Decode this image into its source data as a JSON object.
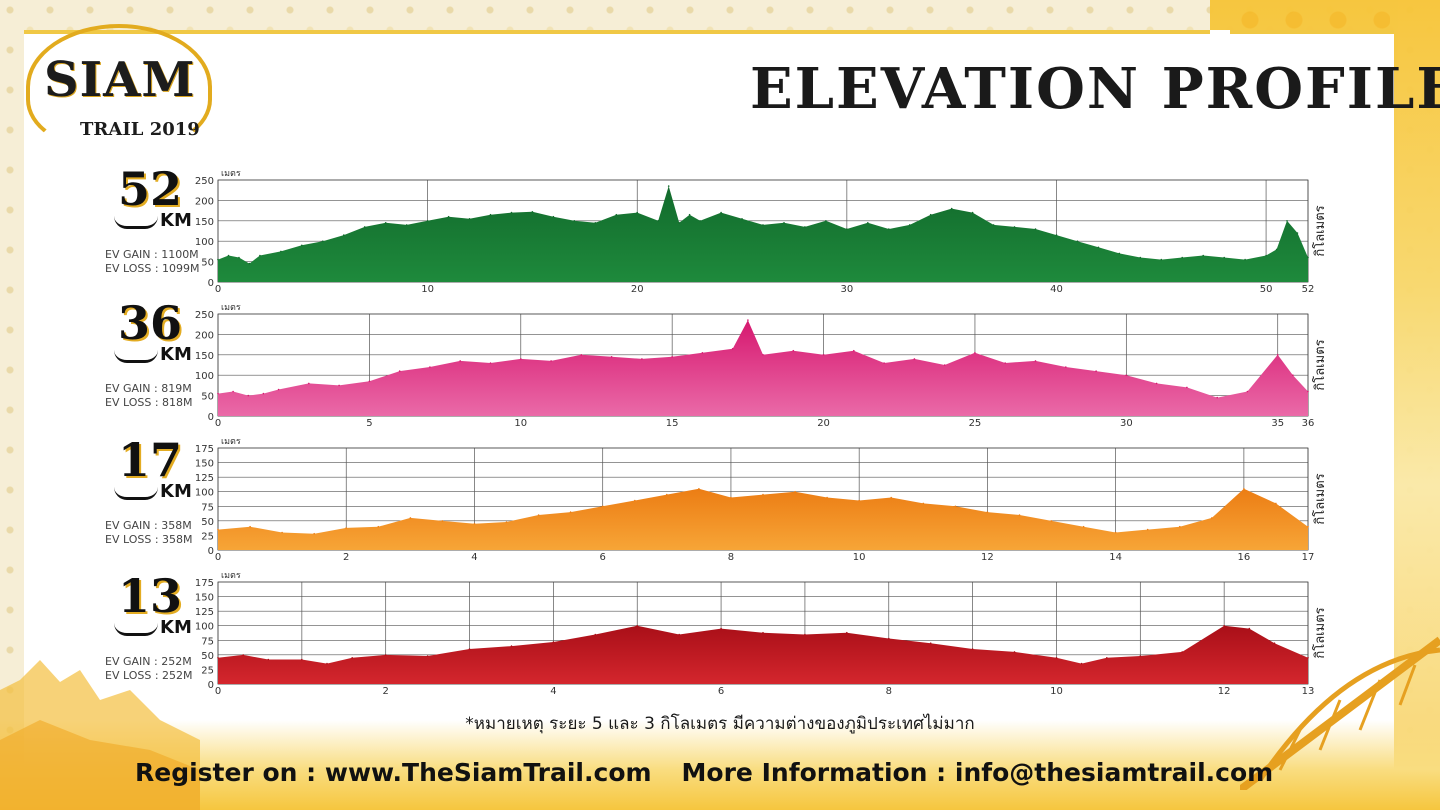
{
  "header": {
    "title": "ELEVATION PROFILES",
    "logo_word": "SIAM",
    "logo_sub": "TRAIL",
    "logo_year": "2019"
  },
  "footnote": "*หมายเหตุ ระยะ 5 และ 3 กิโลเมตร มีความต่างของภูมิประเทศไม่มาก",
  "footer": {
    "register": "Register on : www.TheSiamTrail.com",
    "info": "More Information : info@thesiamtrail.com"
  },
  "colors": {
    "green": "#138036",
    "pink": "#e43b8e",
    "orange": "#f1921d",
    "red": "#c1141d",
    "gold": "#e2ab1e"
  },
  "chart_data": [
    {
      "type": "area",
      "race": "52",
      "km_label": "KM",
      "gain": "EV GAIN : 1100M",
      "loss": "EV LOSS : 1099M",
      "ylabel": "เมตร",
      "xlabel_right": "กิโลเมตร",
      "color": "#1e8a3c",
      "color2": "#126a2c",
      "ylim": [
        0,
        250
      ],
      "yticks": [
        0,
        50,
        100,
        150,
        200,
        250
      ],
      "xlim": [
        0,
        52
      ],
      "xticks": [
        0,
        10,
        20,
        30,
        40,
        50,
        52
      ],
      "gridx": [
        0,
        10,
        20,
        30,
        40,
        50,
        52
      ],
      "x": [
        0,
        0.5,
        1,
        1.5,
        2,
        3,
        4,
        5,
        6,
        7,
        8,
        9,
        10,
        11,
        12,
        13,
        14,
        15,
        16,
        17,
        18,
        19,
        20,
        21,
        21.5,
        22,
        22.5,
        23,
        24,
        25,
        26,
        27,
        28,
        29,
        30,
        31,
        32,
        33,
        34,
        35,
        36,
        37,
        38,
        39,
        40,
        41,
        42,
        43,
        44,
        45,
        46,
        47,
        48,
        49,
        50,
        50.5,
        51,
        51.5,
        52
      ],
      "values": [
        55,
        65,
        60,
        45,
        65,
        75,
        90,
        100,
        115,
        135,
        145,
        140,
        150,
        160,
        155,
        165,
        170,
        172,
        160,
        150,
        145,
        165,
        170,
        150,
        235,
        145,
        165,
        150,
        170,
        155,
        140,
        145,
        135,
        150,
        130,
        145,
        130,
        140,
        165,
        180,
        170,
        140,
        135,
        130,
        115,
        100,
        85,
        70,
        60,
        55,
        60,
        65,
        60,
        55,
        65,
        80,
        150,
        120,
        60
      ]
    },
    {
      "type": "area",
      "race": "36",
      "km_label": "KM",
      "gain": "EV GAIN : 819M",
      "loss": "EV LOSS : 818M",
      "ylabel": "เมตร",
      "xlabel_right": "กิโลเมตร",
      "color": "#ea6aa8",
      "color2": "#d6186f",
      "ylim": [
        0,
        250
      ],
      "yticks": [
        0,
        50,
        100,
        150,
        200,
        250
      ],
      "xlim": [
        0,
        36
      ],
      "xticks": [
        0,
        5,
        10,
        15,
        20,
        25,
        30,
        35,
        36
      ],
      "gridx": [
        0,
        5,
        10,
        15,
        20,
        25,
        30,
        35,
        36
      ],
      "x": [
        0,
        0.5,
        1,
        1.5,
        2,
        3,
        4,
        5,
        6,
        7,
        8,
        9,
        10,
        11,
        12,
        13,
        14,
        15,
        16,
        17,
        17.5,
        18,
        19,
        20,
        21,
        22,
        23,
        24,
        25,
        26,
        27,
        28,
        29,
        30,
        31,
        32,
        33,
        34,
        35,
        35.5,
        36
      ],
      "values": [
        55,
        60,
        50,
        55,
        65,
        80,
        75,
        85,
        110,
        120,
        135,
        130,
        140,
        135,
        150,
        145,
        140,
        145,
        155,
        165,
        235,
        150,
        160,
        150,
        160,
        130,
        140,
        125,
        155,
        130,
        135,
        120,
        110,
        100,
        80,
        70,
        45,
        60,
        150,
        100,
        60
      ]
    },
    {
      "type": "area",
      "race": "17",
      "km_label": "KM",
      "gain": "EV GAIN : 358M",
      "loss": "EV LOSS : 358M",
      "ylabel": "เมตร",
      "xlabel_right": "กิโลเมตร",
      "color": "#f7a537",
      "color2": "#ec7d14",
      "ylim": [
        0,
        175
      ],
      "yticks": [
        0,
        25,
        50,
        75,
        100,
        125,
        150,
        175
      ],
      "xlim": [
        0,
        17
      ],
      "xticks": [
        0,
        2,
        4,
        6,
        8,
        10,
        12,
        14,
        16,
        17
      ],
      "gridx": [
        0,
        2,
        4,
        6,
        8,
        10,
        12,
        14,
        16,
        17
      ],
      "x": [
        0,
        0.5,
        1,
        1.5,
        2,
        2.5,
        3,
        3.5,
        4,
        4.5,
        5,
        5.5,
        6,
        6.5,
        7,
        7.5,
        8,
        8.5,
        9,
        9.5,
        10,
        10.5,
        11,
        11.5,
        12,
        12.5,
        13,
        13.5,
        14,
        14.5,
        15,
        15.5,
        16,
        16.5,
        17
      ],
      "values": [
        35,
        40,
        30,
        28,
        38,
        40,
        55,
        50,
        45,
        48,
        60,
        65,
        75,
        85,
        95,
        105,
        90,
        95,
        100,
        90,
        85,
        90,
        80,
        75,
        65,
        60,
        50,
        40,
        30,
        35,
        40,
        55,
        105,
        80,
        40
      ]
    },
    {
      "type": "area",
      "race": "13",
      "km_label": "KM",
      "gain": "EV GAIN : 252M",
      "loss": "EV LOSS : 252M",
      "ylabel": "เมตร",
      "xlabel_right": "กิโลเมตร",
      "color": "#d4262d",
      "color2": "#a90f18",
      "ylim": [
        0,
        175
      ],
      "yticks": [
        0,
        25,
        50,
        75,
        100,
        125,
        150,
        175
      ],
      "xlim": [
        0,
        13
      ],
      "xticks": [
        0,
        2,
        4,
        6,
        8,
        10,
        12,
        13
      ],
      "gridx": [
        0,
        1,
        2,
        3,
        4,
        5,
        6,
        7,
        8,
        9,
        10,
        11,
        12,
        13
      ],
      "x": [
        0,
        0.3,
        0.6,
        1,
        1.3,
        1.6,
        2,
        2.5,
        3,
        3.5,
        4,
        4.5,
        5,
        5.5,
        6,
        6.5,
        7,
        7.5,
        8,
        8.5,
        9,
        9.5,
        10,
        10.3,
        10.6,
        11,
        11.5,
        12,
        12.3,
        12.6,
        13
      ],
      "values": [
        45,
        50,
        42,
        42,
        35,
        45,
        50,
        48,
        60,
        65,
        72,
        85,
        100,
        85,
        95,
        88,
        85,
        88,
        78,
        70,
        60,
        55,
        45,
        35,
        45,
        48,
        55,
        100,
        95,
        70,
        45
      ]
    }
  ]
}
